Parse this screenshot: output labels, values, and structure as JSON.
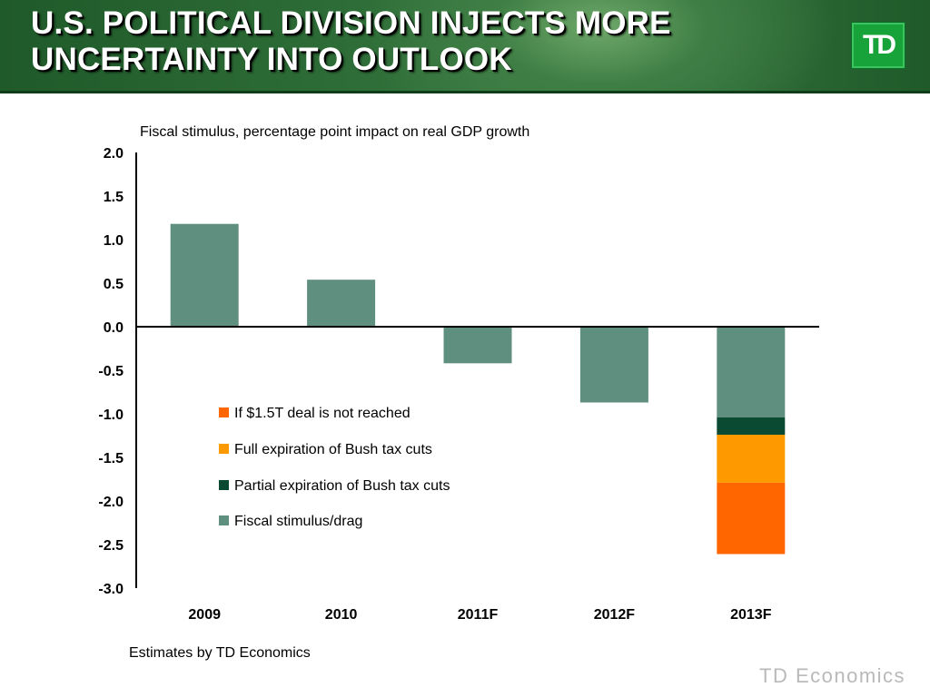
{
  "slide": {
    "title": "U.S. POLITICAL DIVISION INJECTS MORE UNCERTAINTY INTO OUTLOOK",
    "logo_text": "TD",
    "footnote": "Estimates by TD Economics",
    "brand_text": "TD Economics"
  },
  "chart_data": {
    "type": "bar",
    "stacked": true,
    "title": "Fiscal stimulus, percentage point impact on real GDP growth",
    "xlabel": "",
    "ylabel": "",
    "ylim": [
      -3.0,
      2.0
    ],
    "yticks": [
      "2.0",
      "1.5",
      "1.0",
      "0.5",
      "0.0",
      "-0.5",
      "-1.0",
      "-1.5",
      "-2.0",
      "-2.5",
      "-3.0"
    ],
    "categories": [
      "2009",
      "2010",
      "2011F",
      "2012F",
      "2013F"
    ],
    "series": [
      {
        "name": "Fiscal stimulus/drag",
        "color": "#5f8f7e",
        "values": [
          1.18,
          0.54,
          -0.42,
          -0.87,
          -1.04
        ]
      },
      {
        "name": "Partial expiration of Bush tax cuts",
        "color": "#0b4a32",
        "values": [
          0,
          0,
          0,
          0,
          -0.2
        ]
      },
      {
        "name": "Full expiration of Bush tax cuts",
        "color": "#ff9900",
        "values": [
          0,
          0,
          0,
          0,
          -0.55
        ]
      },
      {
        "name": "If $1.5T deal is not reached",
        "color": "#ff6600",
        "values": [
          0,
          0,
          0,
          0,
          -0.82
        ]
      }
    ],
    "legend": {
      "placement": "center-left",
      "order": [
        "If $1.5T deal is not reached",
        "Full expiration of Bush tax cuts",
        "Partial expiration of Bush tax cuts",
        "Fiscal stimulus/drag"
      ]
    },
    "grid": false
  }
}
